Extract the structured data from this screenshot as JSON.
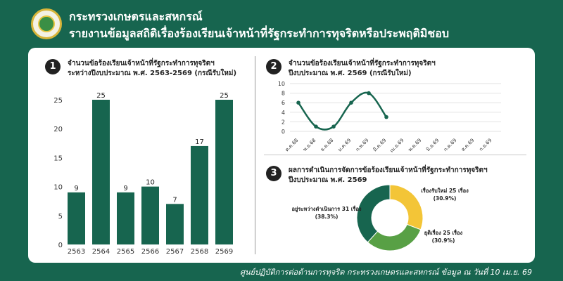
{
  "header": {
    "title_line1": "กระทรวงเกษตรและสหกรณ์",
    "title_line2": "รายงานข้อมูลสถิติเรื่องร้องเรียนเจ้าหน้าที่รัฐกระทำการทุจริตหรือประพฤติมิชอบ"
  },
  "panel1": {
    "number": "1",
    "title_line1": "จำนวนข้อร้องเรียนเจ้าหน้าที่รัฐกระทำการทุจริตฯ",
    "title_line2": "ระหว่างปีงบประมาณ พ.ศ. 2563-2569 (กรณีรับใหม่)"
  },
  "panel2": {
    "number": "2",
    "title_line1": "จำนวนข้อร้องเรียนเจ้าหน้าที่รัฐกระทำการทุจริตฯ",
    "title_line2": "ปีงบประมาณ พ.ศ. 2569 (กรณีรับใหม่)"
  },
  "panel3": {
    "number": "3",
    "title_line1": "ผลการดำเนินการจัดการข้อร้องเรียนเจ้าหน้าที่รัฐกระทำการทุจริตฯ",
    "title_line2": "ปีงบประมาณ พ.ศ. 2569"
  },
  "footer": {
    "text": "ศูนย์ปฏิบัติการต่อต้านการทุจริต กระทรวงเกษตรและสหกรณ์ ข้อมูล ณ วันที่ 10 เม.ย. 69"
  },
  "chart_data": [
    {
      "type": "bar",
      "categories": [
        "2563",
        "2564",
        "2565",
        "2566",
        "2567",
        "2568",
        "2569"
      ],
      "values": [
        9,
        25,
        9,
        10,
        7,
        17,
        25
      ],
      "ylim": [
        0,
        25
      ],
      "yticks": [
        0,
        5,
        10,
        15,
        20,
        25
      ],
      "grid": false,
      "color": "#17654f"
    },
    {
      "type": "line",
      "categories": [
        "ต.ค.68",
        "พ.ย.68",
        "ธ.ค.68",
        "ม.ค.69",
        "ก.พ.69",
        "มี.ค.69",
        "เม.ย.69",
        "พ.ค.69",
        "มิ.ย.69",
        "ก.ค.69",
        "ส.ค.69",
        "ก.ย.69"
      ],
      "values": [
        6,
        1,
        1,
        6,
        8,
        3,
        null,
        null,
        null,
        null,
        null,
        null
      ],
      "ylim": [
        0,
        10
      ],
      "yticks": [
        0,
        2,
        4,
        6,
        8,
        10
      ],
      "grid": true,
      "color": "#17654f"
    },
    {
      "type": "pie",
      "labels": [
        "เรื่องรับใหม่ 25 เรื่อง",
        "ยุติเรื่อง 25 เรื่อง",
        "อยู่ระหว่างดำเนินการ  31 เรื่อง"
      ],
      "values": [
        25,
        25,
        31
      ],
      "percent_labels": [
        "(30.9%)",
        "(30.9%)",
        "(38.3%)"
      ],
      "colors": [
        "#f3c537",
        "#58a045",
        "#17654f"
      ]
    }
  ]
}
